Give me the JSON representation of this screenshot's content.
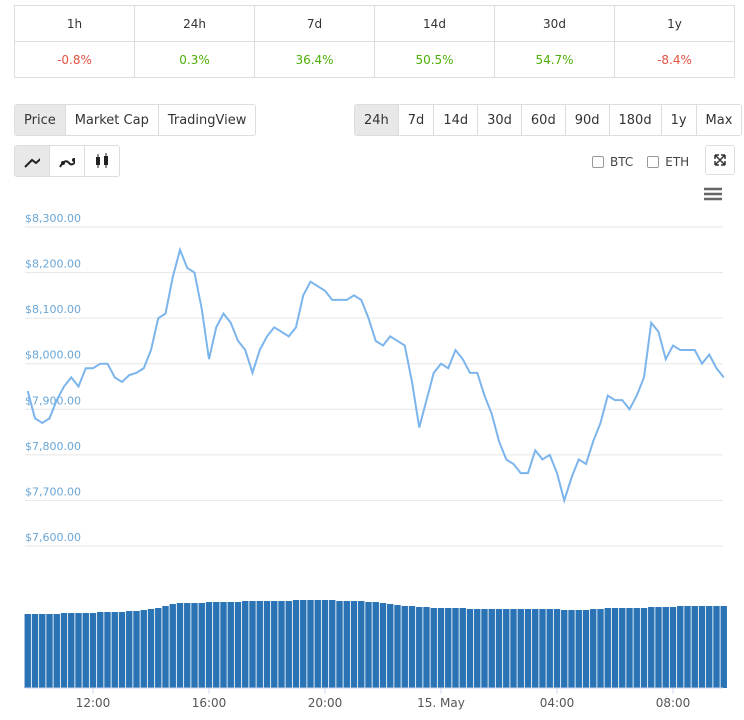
{
  "table": {
    "headers": [
      "1h",
      "24h",
      "7d",
      "14d",
      "30d",
      "1y"
    ],
    "values": [
      "-0.8%",
      "0.3%",
      "36.4%",
      "50.5%",
      "54.7%",
      "-8.4%"
    ],
    "colors": [
      "#e15241",
      "#4eaf0a",
      "#4eaf0a",
      "#4eaf0a",
      "#4eaf0a",
      "#e15241"
    ]
  },
  "tabs": [
    "Price",
    "Market Cap",
    "TradingView"
  ],
  "ranges": [
    "24h",
    "7d",
    "14d",
    "30d",
    "60d",
    "90d",
    "180d",
    "1y",
    "Max"
  ],
  "compare": [
    "BTC",
    "ETH"
  ],
  "chart_data": {
    "type": "line",
    "categories": [
      null,
      null,
      null,
      null,
      null,
      null,
      null,
      null,
      null,
      "12:00",
      null,
      null,
      null,
      null,
      null,
      null,
      null,
      null,
      null,
      null,
      null,
      null,
      null,
      null,
      null,
      "16:00",
      null,
      null,
      null,
      null,
      null,
      null,
      null,
      null,
      null,
      null,
      null,
      null,
      null,
      null,
      null,
      "20:00",
      null,
      null,
      null,
      null,
      null,
      null,
      null,
      null,
      null,
      null,
      null,
      null,
      null,
      null,
      null,
      "15. May",
      null,
      null,
      null,
      null,
      null,
      null,
      null,
      null,
      null,
      null,
      null,
      null,
      null,
      null,
      null,
      "04:00",
      null,
      null,
      null,
      null,
      null,
      null,
      null,
      null,
      null,
      null,
      null,
      null,
      null,
      null,
      null,
      "08:00",
      null,
      null,
      null,
      null,
      null,
      null,
      null
    ],
    "series": [
      {
        "color": "#7cb5ec",
        "values": [
          7940,
          7880,
          7870,
          7880,
          7920,
          7950,
          7970,
          7950,
          7990,
          7990,
          8000,
          8000,
          7970,
          7960,
          7975,
          7980,
          7990,
          8030,
          8100,
          8110,
          8190,
          8250,
          8210,
          8200,
          8120,
          8010,
          8080,
          8110,
          8090,
          8050,
          8030,
          7980,
          8030,
          8060,
          8080,
          8070,
          8060,
          8080,
          8150,
          8180,
          8170,
          8160,
          8140,
          8140,
          8140,
          8150,
          8140,
          8100,
          8050,
          8040,
          8060,
          8050,
          8040,
          7960,
          7860,
          7920,
          7980,
          8000,
          7990,
          8030,
          8010,
          7980,
          7980,
          7930,
          7890,
          7830,
          7790,
          7780,
          7760,
          7760,
          7810,
          7790,
          7800,
          7760,
          7700,
          7750,
          7790,
          7780,
          7830,
          7870,
          7930,
          7920,
          7920,
          7900,
          7930,
          7970,
          8090,
          8070,
          8010,
          8040,
          8030,
          8030,
          8030,
          8000,
          8020,
          7990,
          7970
        ]
      }
    ],
    "volume": [
      74,
      74,
      74,
      74,
      74,
      75,
      75,
      75,
      75,
      75,
      76,
      76,
      76,
      76,
      77,
      77,
      78,
      79,
      80,
      82,
      84,
      85,
      85,
      85,
      85,
      86,
      86,
      86,
      86,
      86,
      87,
      87,
      87,
      87,
      87,
      87,
      87,
      88,
      88,
      88,
      88,
      88,
      88,
      87,
      87,
      87,
      87,
      86,
      86,
      85,
      84,
      83,
      82,
      82,
      81,
      81,
      80,
      80,
      80,
      80,
      80,
      79,
      79,
      79,
      79,
      79,
      79,
      79,
      79,
      79,
      79,
      79,
      79,
      79,
      78,
      78,
      78,
      78,
      79,
      79,
      80,
      80,
      80,
      80,
      80,
      80,
      81,
      81,
      81,
      81,
      82,
      82,
      82,
      82,
      82,
      82,
      82
    ],
    "volume_color": "#2a74b5",
    "ylim": [
      7600,
      8300
    ],
    "yticks": [
      {
        "value": 7600,
        "label": "$7,600.00"
      },
      {
        "value": 7700,
        "label": "$7,700.00"
      },
      {
        "value": 7800,
        "label": "$7,800.00"
      },
      {
        "value": 7900,
        "label": "$7,900.00"
      },
      {
        "value": 8000,
        "label": "$8,000.00"
      },
      {
        "value": 8100,
        "label": "$8,100.00"
      },
      {
        "value": 8200,
        "label": "$8,200.00"
      },
      {
        "value": 8300,
        "label": "$8,300.00"
      }
    ],
    "grid": true
  }
}
